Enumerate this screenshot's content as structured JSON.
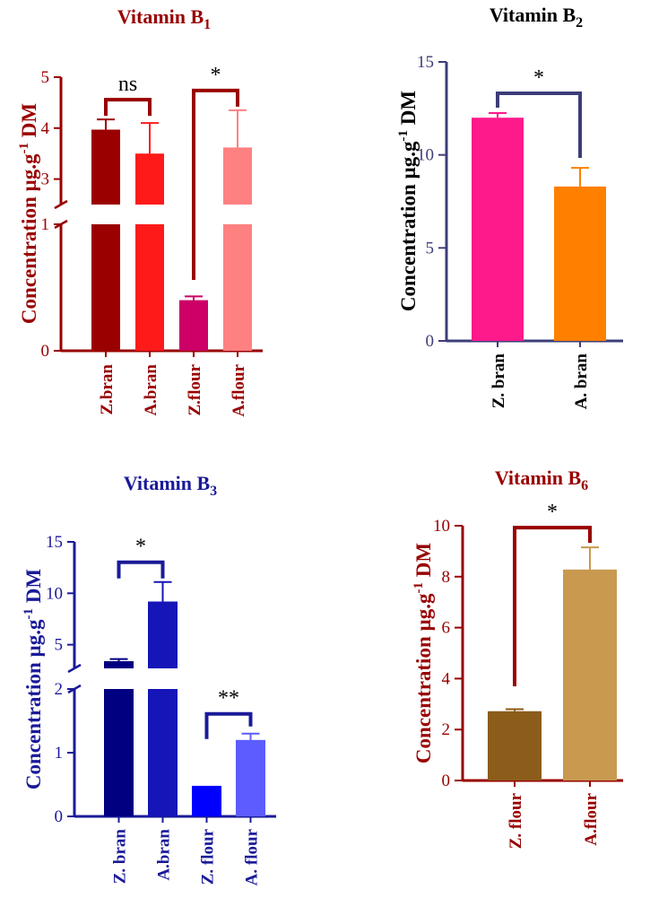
{
  "figure": {
    "description_label": "Vitamin B concentrations"
  },
  "chart_data": [
    {
      "type": "bar",
      "id": "b1",
      "title_main": "Vitamin B",
      "title_sub": "1",
      "ylabel_main": "Concentration µg.g",
      "ylabel_sup": "-1",
      "ylabel_end": " DM",
      "categories": [
        "Z.bran",
        "A.bran",
        "Z.flour",
        "A.flour"
      ],
      "values": [
        3.97,
        3.5,
        0.4,
        3.62
      ],
      "errors": [
        0.2,
        0.6,
        0.03,
        0.73
      ],
      "colors": [
        "#9b0000",
        "#ff1a1a",
        "#cc0066",
        "#ff8080"
      ],
      "axis_color": "#990000",
      "text_color": "#990000",
      "broken_axis": {
        "lower": [
          0,
          1
        ],
        "upper": [
          2.5,
          5
        ]
      },
      "ticks_lower": [
        0,
        1
      ],
      "ticks_upper": [
        3,
        4,
        5
      ],
      "annotations": [
        {
          "label": "ns",
          "from": 0,
          "to": 1
        },
        {
          "label": "*",
          "from": 2,
          "to": 3
        }
      ]
    },
    {
      "type": "bar",
      "id": "b2",
      "title_main": "Vitamin B",
      "title_sub": "2",
      "ylabel_main": "Concentration µg.g",
      "ylabel_sup": "-1",
      "ylabel_end": " DM",
      "categories": [
        "Z. bran",
        "A. bran"
      ],
      "values": [
        12.0,
        8.3
      ],
      "errors": [
        0.25,
        1.0
      ],
      "colors": [
        "#ff1a8c",
        "#ff8000"
      ],
      "axis_color": "#3d3d7a",
      "text_color": "#000000",
      "tick_color": "#3d3d7a",
      "ylim": [
        0,
        15
      ],
      "ticks": [
        0,
        5,
        10,
        15
      ],
      "annotations": [
        {
          "label": "*",
          "from": 0,
          "to": 1
        }
      ]
    },
    {
      "type": "bar",
      "id": "b3",
      "title_main": "Vitamin B",
      "title_sub": "3",
      "ylabel_main": "Concentration µg.g",
      "ylabel_sup": "-1",
      "ylabel_end": " DM",
      "categories": [
        "Z. bran",
        "A.bran",
        "Z. flour",
        "A. flour"
      ],
      "values": [
        3.4,
        9.2,
        0.48,
        1.2
      ],
      "errors": [
        0.2,
        1.9,
        0.0,
        0.1
      ],
      "colors": [
        "#000080",
        "#1515b8",
        "#0000ff",
        "#5c5cff"
      ],
      "axis_color": "#1a1a99",
      "text_color": "#1a1a99",
      "broken_axis": {
        "lower": [
          0,
          2
        ],
        "upper": [
          2.7,
          15
        ]
      },
      "ticks_lower": [
        0,
        1,
        2
      ],
      "ticks_upper": [
        5,
        10,
        15
      ],
      "annotations": [
        {
          "label": "*",
          "from": 0,
          "to": 1
        },
        {
          "label": "**",
          "from": 2,
          "to": 3
        }
      ]
    },
    {
      "type": "bar",
      "id": "b6",
      "title_main": "Vitamin B",
      "title_sub": "6",
      "ylabel_main": "Concentration µg.g",
      "ylabel_sup": "-1",
      "ylabel_end": " DM",
      "categories": [
        "Z. flour",
        "A.flour"
      ],
      "values": [
        2.72,
        8.28
      ],
      "errors": [
        0.08,
        0.87
      ],
      "colors": [
        "#8c5c1a",
        "#c8994f"
      ],
      "axis_color": "#990000",
      "text_color": "#990000",
      "ylim": [
        0,
        10
      ],
      "ticks": [
        0,
        2,
        4,
        6,
        8,
        10
      ],
      "annotations": [
        {
          "label": "*",
          "from": 0,
          "to": 1
        }
      ]
    }
  ]
}
